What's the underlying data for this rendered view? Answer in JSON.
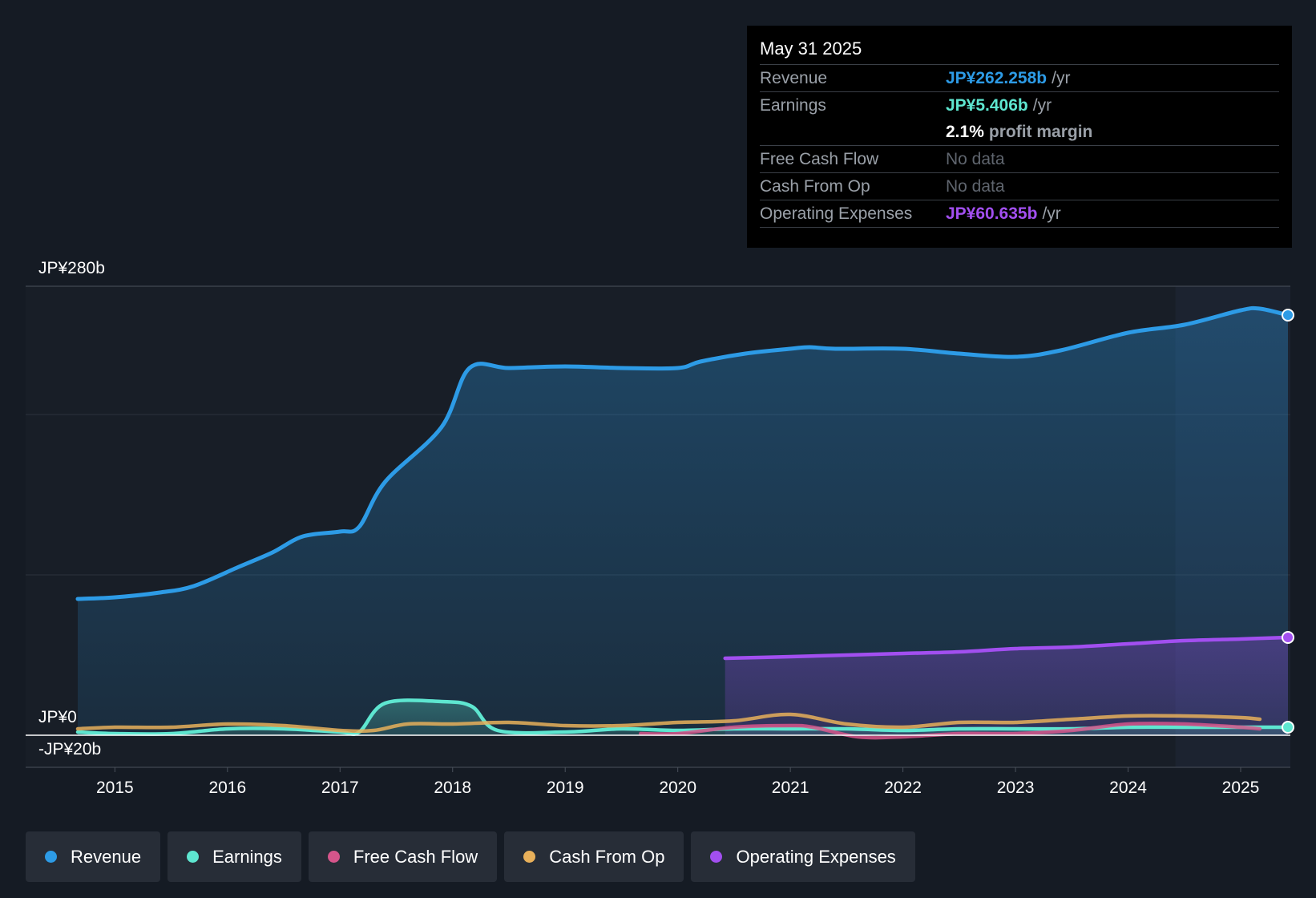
{
  "tooltip": {
    "date": "May 31 2025",
    "rows": [
      {
        "label": "Revenue",
        "value": "JP¥262.258b",
        "unit": "/yr",
        "color": "#2d9be6"
      },
      {
        "label": "Earnings",
        "value": "JP¥5.406b",
        "unit": "/yr",
        "color": "#5ee6d0"
      },
      {
        "label": "",
        "margin_value": "2.1%",
        "margin_text": "profit margin"
      },
      {
        "label": "Free Cash Flow",
        "value": "No data"
      },
      {
        "label": "Cash From Op",
        "value": "No data"
      },
      {
        "label": "Operating Expenses",
        "value": "JP¥60.635b",
        "unit": "/yr",
        "color": "#a24ff0"
      }
    ]
  },
  "legend": [
    {
      "label": "Revenue",
      "color": "#2d9be6"
    },
    {
      "label": "Earnings",
      "color": "#5ee6d0"
    },
    {
      "label": "Free Cash Flow",
      "color": "#d6558b"
    },
    {
      "label": "Cash From Op",
      "color": "#e8b05a"
    },
    {
      "label": "Operating Expenses",
      "color": "#a24ff0"
    }
  ],
  "chart_data": {
    "type": "area",
    "y_top_label": "JP¥280b",
    "y_zero_label": "JP¥0",
    "y_bottom_label": "-JP¥20b",
    "ylim": [
      -20,
      280
    ],
    "xlim": [
      2014.67,
      2025.42
    ],
    "x_ticks": [
      "2015",
      "2016",
      "2017",
      "2018",
      "2019",
      "2020",
      "2021",
      "2022",
      "2023",
      "2024",
      "2025"
    ],
    "x_tick_values": [
      2015,
      2016,
      2017,
      2018,
      2019,
      2020,
      2021,
      2022,
      2023,
      2024,
      2025
    ],
    "highlight_from": 2024.42,
    "grid": true,
    "series": [
      {
        "name": "Revenue",
        "color": "#2d9be6",
        "fill": true,
        "end_marker": true,
        "x": [
          2014.67,
          2015.0,
          2015.4,
          2015.7,
          2016.1,
          2016.4,
          2016.67,
          2017.0,
          2017.17,
          2017.4,
          2017.9,
          2018.15,
          2018.5,
          2019.0,
          2019.5,
          2020.0,
          2020.2,
          2020.6,
          2021.0,
          2021.17,
          2021.4,
          2022.0,
          2022.5,
          2023.0,
          2023.4,
          2024.0,
          2024.5,
          2025.0,
          2025.17,
          2025.42
        ],
        "y": [
          85,
          86,
          89,
          93,
          105,
          114,
          124,
          127,
          130,
          158,
          192,
          229,
          229,
          230,
          229,
          229,
          233,
          238,
          241,
          242,
          241,
          241,
          238,
          236,
          240,
          251,
          256,
          265,
          266,
          262
        ]
      },
      {
        "name": "Operating Expenses",
        "color": "#a24ff0",
        "fill": true,
        "end_marker": true,
        "x": [
          2020.42,
          2021.0,
          2021.5,
          2022.0,
          2022.5,
          2023.0,
          2023.5,
          2024.0,
          2024.5,
          2025.0,
          2025.42
        ],
        "y": [
          48,
          49,
          50,
          51,
          52,
          54,
          55,
          57,
          59,
          60,
          61
        ]
      },
      {
        "name": "Earnings",
        "color": "#5ee6d0",
        "fill": true,
        "end_marker": true,
        "x": [
          2014.67,
          2015.0,
          2015.5,
          2016.0,
          2016.5,
          2017.0,
          2017.17,
          2017.4,
          2017.9,
          2018.17,
          2018.4,
          2019.0,
          2019.5,
          2020.0,
          2020.5,
          2021.0,
          2021.5,
          2022.0,
          2022.5,
          2023.0,
          2023.5,
          2024.0,
          2024.5,
          2025.0,
          2025.42
        ],
        "y": [
          2,
          1,
          1,
          4,
          4,
          2,
          2,
          20,
          21,
          18,
          3,
          2,
          4,
          3,
          4,
          4,
          4,
          3,
          4,
          4,
          4,
          5,
          5,
          5,
          5
        ]
      },
      {
        "name": "Cash From Op",
        "color": "#e8b05a",
        "fill": false,
        "end_marker": false,
        "x": [
          2014.67,
          2015.0,
          2015.5,
          2016.0,
          2016.5,
          2017.0,
          2017.3,
          2017.6,
          2018.0,
          2018.5,
          2019.0,
          2019.5,
          2020.0,
          2020.5,
          2021.0,
          2021.5,
          2022.0,
          2022.5,
          2023.0,
          2023.5,
          2024.0,
          2024.5,
          2025.0,
          2025.17
        ],
        "y": [
          4,
          5,
          5,
          7,
          6,
          3,
          3,
          7,
          7,
          8,
          6,
          6,
          8,
          9,
          13,
          7,
          5,
          8,
          8,
          10,
          12,
          12,
          11,
          10
        ]
      },
      {
        "name": "Free Cash Flow",
        "color": "#d6558b",
        "fill": false,
        "end_marker": false,
        "x": [
          2019.67,
          2020.0,
          2020.5,
          2021.0,
          2021.2,
          2021.6,
          2022.0,
          2022.5,
          2023.0,
          2023.5,
          2024.0,
          2024.5,
          2025.0,
          2025.17
        ],
        "y": [
          1,
          1,
          5,
          6,
          5,
          -1,
          -1,
          1,
          1,
          3,
          7,
          7,
          5,
          4
        ]
      }
    ]
  }
}
